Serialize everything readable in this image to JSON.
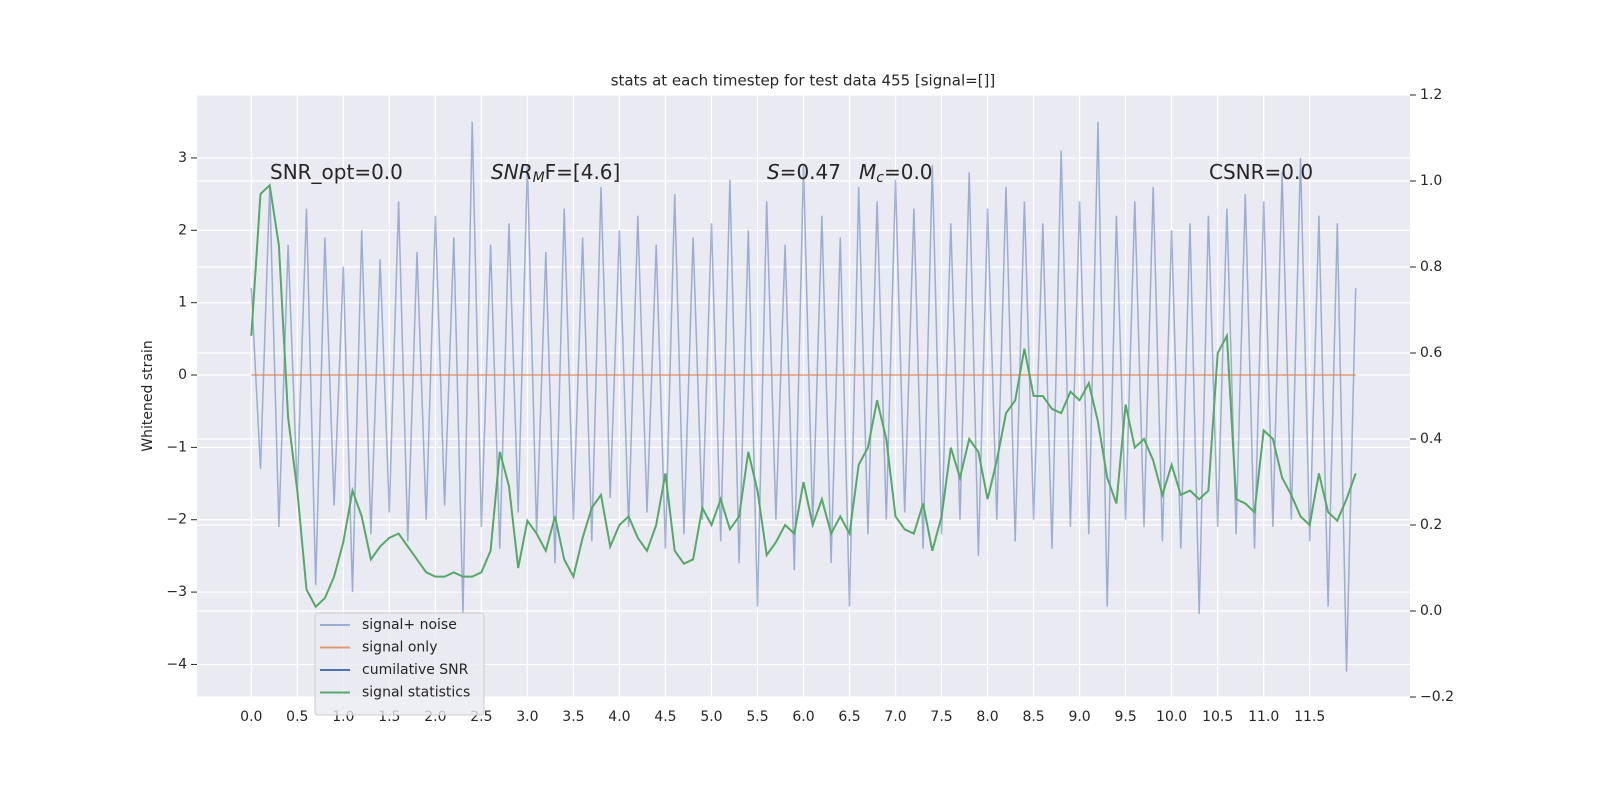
{
  "chart_data": {
    "type": "line",
    "title": "stats at each timestep for test data 455 [signal=[]]",
    "ylabel": "Whitened strain",
    "annotations": [
      [
        {
          "text": "SNR_opt=0.0",
          "style": "normal"
        }
      ],
      [
        {
          "text": "SNR",
          "style": "italic"
        },
        {
          "text": "M",
          "style": "sub-italic"
        },
        {
          "text": "F=[4.6]",
          "style": "normal"
        }
      ],
      [
        {
          "text": "S",
          "style": "italic"
        },
        {
          "text": "=0.47",
          "style": "normal"
        }
      ],
      [
        {
          "text": "M",
          "style": "italic"
        },
        {
          "text": "c",
          "style": "sub-italic"
        },
        {
          "text": "=0.0",
          "style": "normal"
        }
      ],
      [
        {
          "text": "CSNR=0.0",
          "style": "normal"
        }
      ]
    ],
    "x": [
      0,
      0.1,
      0.2,
      0.3,
      0.4,
      0.5,
      0.6,
      0.7,
      0.8,
      0.9,
      1,
      1.1,
      1.2,
      1.3,
      1.4,
      1.5,
      1.6,
      1.7,
      1.8,
      1.9,
      2,
      2.1,
      2.2,
      2.3,
      2.4,
      2.5,
      2.6,
      2.7,
      2.8,
      2.9,
      3,
      3.1,
      3.2,
      3.3,
      3.4,
      3.5,
      3.6,
      3.7,
      3.8,
      3.9,
      4,
      4.1,
      4.2,
      4.3,
      4.4,
      4.5,
      4.6,
      4.7,
      4.8,
      4.9,
      5,
      5.1,
      5.2,
      5.3,
      5.4,
      5.5,
      5.6,
      5.7,
      5.8,
      5.9,
      6,
      6.1,
      6.2,
      6.3,
      6.4,
      6.5,
      6.6,
      6.7,
      6.8,
      6.9,
      7,
      7.1,
      7.2,
      7.3,
      7.4,
      7.5,
      7.6,
      7.7,
      7.8,
      7.9,
      8,
      8.1,
      8.2,
      8.3,
      8.4,
      8.5,
      8.6,
      8.7,
      8.8,
      8.9,
      9,
      9.1,
      9.2,
      9.3,
      9.4,
      9.5,
      9.6,
      9.7,
      9.8,
      9.9,
      10,
      10.1,
      10.2,
      10.3,
      10.4,
      10.5,
      10.6,
      10.7,
      10.8,
      10.9,
      11,
      11.1,
      11.2,
      11.3,
      11.4,
      11.5,
      11.6,
      11.7,
      11.8,
      11.9,
      12
    ],
    "series": [
      {
        "name": "signal+ noise",
        "color": "#4c72b0",
        "alpha": 0.5,
        "values": [
          1.2,
          -1.3,
          2.6,
          -2.1,
          1.8,
          -1.6,
          2.3,
          -2.9,
          1.9,
          -1.8,
          1.5,
          -3.0,
          2.0,
          -2.2,
          1.6,
          -1.9,
          2.4,
          -2.3,
          1.7,
          -2.0,
          2.2,
          -1.8,
          1.9,
          -3.3,
          3.5,
          -2.1,
          1.8,
          -2.4,
          2.1,
          -1.9,
          2.9,
          -2.2,
          1.7,
          -2.6,
          2.3,
          -2.0,
          1.9,
          -2.3,
          2.6,
          -1.7,
          2.0,
          -2.1,
          2.2,
          -1.9,
          1.8,
          -2.4,
          2.5,
          -2.2,
          1.9,
          -2.0,
          2.1,
          -2.3,
          2.7,
          -2.6,
          2.0,
          -3.2,
          2.4,
          -2.0,
          1.8,
          -2.7,
          2.9,
          -2.1,
          2.2,
          -2.6,
          1.9,
          -3.2,
          2.6,
          -2.2,
          2.4,
          -2.0,
          2.7,
          -1.9,
          2.3,
          -2.4,
          2.9,
          -2.2,
          2.1,
          -2.0,
          2.8,
          -2.5,
          2.3,
          -2.0,
          2.6,
          -2.3,
          2.4,
          -2.0,
          2.1,
          -2.4,
          3.1,
          -2.1,
          2.4,
          -2.2,
          3.5,
          -3.2,
          2.2,
          -2.0,
          2.4,
          -2.1,
          2.6,
          -2.3,
          2.0,
          -2.4,
          2.1,
          -3.3,
          2.2,
          -2.1,
          2.3,
          -2.2,
          2.5,
          -2.4,
          2.4,
          -2.1,
          2.8,
          -2.0,
          3.0,
          -2.3,
          2.2,
          -3.2,
          2.1,
          -4.1,
          1.2
        ]
      },
      {
        "name": "signal only",
        "color": "#dd8452",
        "alpha": 0.8,
        "x": [
          0,
          12
        ],
        "values": [
          0,
          0
        ]
      },
      {
        "name": "cumilative SNR",
        "color": "#4c72b0",
        "alpha": 1,
        "x": [],
        "values": []
      },
      {
        "name": "signal statistics",
        "color": "#55a868",
        "alpha": 1,
        "axis": "y2",
        "values": [
          0.64,
          0.97,
          0.99,
          0.85,
          0.45,
          0.28,
          0.05,
          0.01,
          0.03,
          0.08,
          0.16,
          0.28,
          0.22,
          0.12,
          0.15,
          0.17,
          0.18,
          0.15,
          0.12,
          0.09,
          0.08,
          0.08,
          0.09,
          0.08,
          0.08,
          0.09,
          0.14,
          0.37,
          0.29,
          0.1,
          0.21,
          0.18,
          0.14,
          0.22,
          0.12,
          0.08,
          0.17,
          0.24,
          0.27,
          0.15,
          0.2,
          0.22,
          0.17,
          0.14,
          0.2,
          0.32,
          0.14,
          0.11,
          0.12,
          0.24,
          0.2,
          0.26,
          0.19,
          0.22,
          0.37,
          0.28,
          0.13,
          0.16,
          0.2,
          0.18,
          0.3,
          0.2,
          0.26,
          0.18,
          0.22,
          0.18,
          0.34,
          0.38,
          0.49,
          0.4,
          0.22,
          0.19,
          0.18,
          0.25,
          0.14,
          0.22,
          0.38,
          0.31,
          0.4,
          0.37,
          0.26,
          0.35,
          0.46,
          0.49,
          0.61,
          0.5,
          0.5,
          0.47,
          0.46,
          0.51,
          0.49,
          0.53,
          0.44,
          0.31,
          0.25,
          0.48,
          0.38,
          0.4,
          0.35,
          0.27,
          0.34,
          0.27,
          0.28,
          0.26,
          0.28,
          0.6,
          0.64,
          0.26,
          0.25,
          0.23,
          0.42,
          0.4,
          0.31,
          0.27,
          0.22,
          0.2,
          0.32,
          0.23,
          0.21,
          0.26,
          0.32
        ]
      }
    ],
    "xlim": [
      -0.59,
      12.59
    ],
    "xticks": [
      {
        "value": 0,
        "label": "0.0"
      },
      0.5,
      {
        "value": 1,
        "label": "1.0"
      },
      1.5,
      {
        "value": 2,
        "label": "2.0"
      },
      2.5,
      {
        "value": 3,
        "label": "3.0"
      },
      3.5,
      {
        "value": 4,
        "label": "4.0"
      },
      4.5,
      {
        "value": 5,
        "label": "5.0"
      },
      5.5,
      {
        "value": 6,
        "label": "6.0"
      },
      6.5,
      {
        "value": 7,
        "label": "7.0"
      },
      7.5,
      {
        "value": 8,
        "label": "8.0"
      },
      8.5,
      {
        "value": 9,
        "label": "9.0"
      },
      9.5,
      {
        "value": 10,
        "label": "10.0"
      },
      10.5,
      {
        "value": 11,
        "label": "11.0"
      },
      11.5
    ],
    "ylim": [
      -4.45,
      3.87
    ],
    "yticks": [
      {
        "value": -4,
        "label": "−4"
      },
      {
        "value": -3,
        "label": "−3"
      },
      {
        "value": -2,
        "label": "−2"
      },
      {
        "value": -1,
        "label": "−1"
      },
      0,
      1,
      2,
      3
    ],
    "y2lim": [
      -0.2,
      1.2
    ],
    "y2ticks": [
      {
        "value": -0.2,
        "label": "−0.2"
      },
      {
        "value": 0,
        "label": "0.0"
      },
      0.2,
      0.4,
      0.6,
      0.8,
      {
        "value": 1,
        "label": "1.0"
      },
      1.2
    ],
    "grid": true,
    "background": "#eaeaf2",
    "legend": "lower left"
  }
}
